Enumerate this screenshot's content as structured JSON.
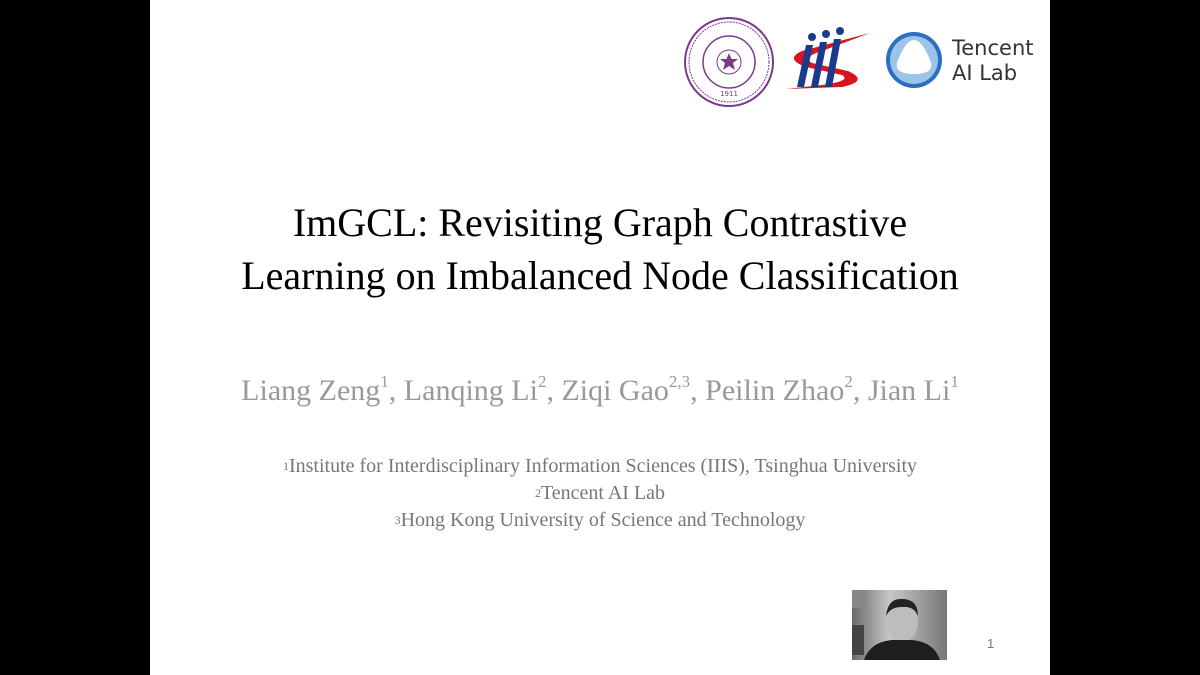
{
  "slide": {
    "title_lines": [
      "ImGCL: Revisiting Graph Contrastive",
      "Learning on Imbalanced Node Classification"
    ],
    "authors": [
      {
        "name": "Liang Zeng",
        "sup": "1",
        "sep": ", "
      },
      {
        "name": "Lanqing Li",
        "sup": "2",
        "sep": ", "
      },
      {
        "name": "Ziqi Gao",
        "sup": "2,3",
        "sep": ", "
      },
      {
        "name": "Peilin Zhao",
        "sup": "2",
        "sep": ", "
      },
      {
        "name": "Jian Li",
        "sup": "1",
        "sep": ""
      }
    ],
    "affiliations": [
      {
        "sup": "1",
        "text": "Institute for Interdisciplinary Information Sciences (IIIS), Tsinghua University"
      },
      {
        "sup": "2",
        "text": "Tencent AI Lab"
      },
      {
        "sup": "3",
        "text": "Hong Kong University of Science and Technology"
      }
    ],
    "logos": {
      "tsinghua": {
        "text": "1911",
        "color": "#7a3b8c"
      },
      "iiis": {
        "colors": [
          "#1a3a8c",
          "#d8141e"
        ]
      },
      "tencent": {
        "line1": "Tencent",
        "line2": "AI Lab",
        "color": "#2a6fc0"
      }
    },
    "page_number": "1"
  }
}
